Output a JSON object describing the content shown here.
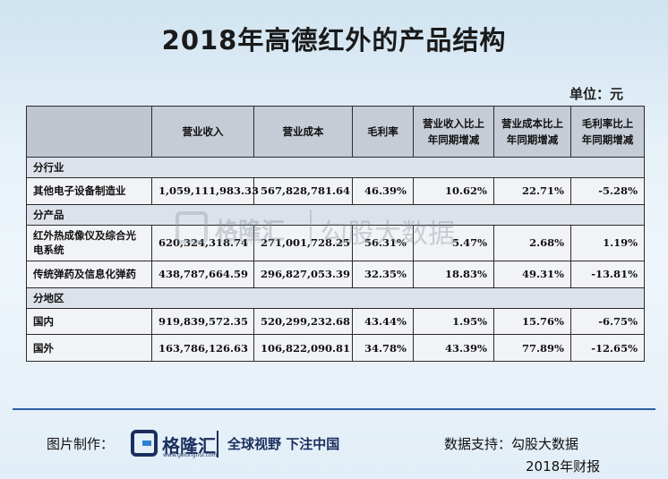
{
  "title": "2018年高德红外的产品结构",
  "unit": "单位：元",
  "table": {
    "headers": [
      "",
      "营业收入",
      "营业成本",
      "毛利率",
      "营业收入比上年同期增减",
      "营业成本比上年同期增减",
      "毛利率比上年同期增减"
    ],
    "sections": [
      {
        "label": "分行业",
        "rows": [
          {
            "name": "其他电子设备制造业",
            "revenue": "1,059,111,983.33",
            "cost": "567,828,781.64",
            "margin": "46.39%",
            "rev_change": "10.62%",
            "cost_change": "22.71%",
            "margin_change": "-5.28%"
          }
        ]
      },
      {
        "label": "分产品",
        "rows": [
          {
            "name": "红外热成像仪及综合光电系统",
            "revenue": "620,324,318.74",
            "cost": "271,001,728.25",
            "margin": "56.31%",
            "rev_change": "5.47%",
            "cost_change": "2.68%",
            "margin_change": "1.19%"
          },
          {
            "name": "传统弹药及信息化弹药",
            "revenue": "438,787,664.59",
            "cost": "296,827,053.39",
            "margin": "32.35%",
            "rev_change": "18.83%",
            "cost_change": "49.31%",
            "margin_change": "-13.81%"
          }
        ]
      },
      {
        "label": "分地区",
        "rows": [
          {
            "name": "国内",
            "revenue": "919,839,572.35",
            "cost": "520,299,232.68",
            "margin": "43.44%",
            "rev_change": "1.95%",
            "cost_change": "15.76%",
            "margin_change": "-6.75%"
          },
          {
            "name": "国外",
            "revenue": "163,786,126.63",
            "cost": "106,822,090.81",
            "margin": "34.78%",
            "rev_change": "43.39%",
            "cost_change": "77.89%",
            "margin_change": "-12.65%"
          }
        ]
      }
    ]
  },
  "watermark": {
    "brand": "格隆汇",
    "brand_sub": "www.gelonghui.com",
    "partner": "勾股大数据"
  },
  "footer": {
    "made_by": "图片制作：",
    "logo_name": "格隆汇",
    "logo_sub": "www.gelonghui.com",
    "slogan": "全球视野 下注中国",
    "data_support": "数据支持：勾股大数据",
    "source": "2018年财报"
  }
}
